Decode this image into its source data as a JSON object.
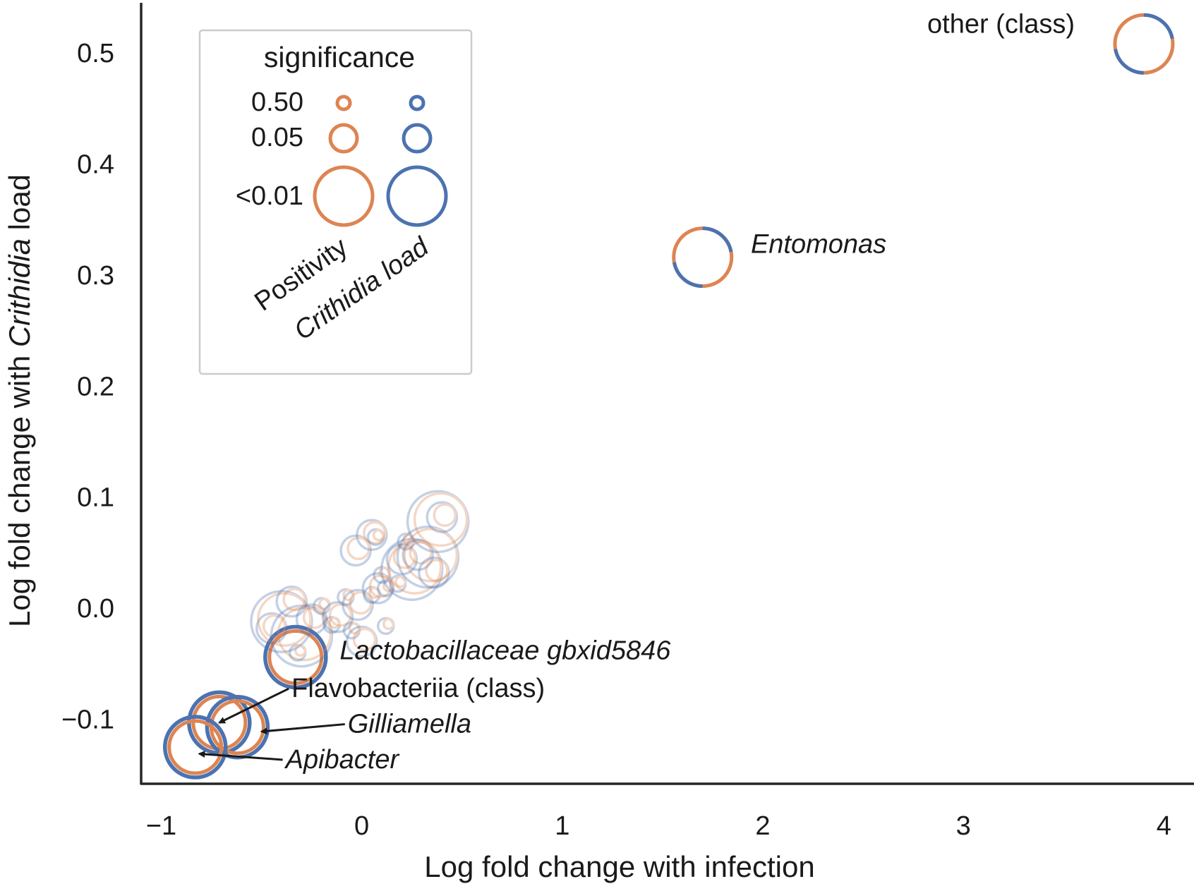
{
  "chart_data": {
    "type": "scatter",
    "title": "",
    "xlabel": "Log fold change with infection",
    "ylabel_prefix": "Log fold change with ",
    "ylabel_italic": "Crithidia",
    "ylabel_suffix": " load",
    "xlim": [
      -1.1,
      4.15
    ],
    "ylim": [
      -0.158,
      0.545
    ],
    "x_ticks": [
      -1,
      0,
      1,
      2,
      3,
      4
    ],
    "x_tick_labels": [
      "−1",
      "0",
      "1",
      "2",
      "3",
      "4"
    ],
    "y_ticks": [
      -0.1,
      0.0,
      0.1,
      0.2,
      0.3,
      0.4,
      0.5
    ],
    "y_tick_labels": [
      "−0.1",
      "0.0",
      "0.1",
      "0.2",
      "0.3",
      "0.4",
      "0.5"
    ],
    "colors": {
      "positivity": "#dd8452",
      "crithidia_load": "#4c72b0"
    },
    "legend": {
      "title": "significance",
      "levels": [
        "0.50",
        "0.05",
        "<0.01"
      ],
      "columns": [
        "Positivity",
        "Crithidia load"
      ],
      "placement": "top-left"
    },
    "points": [
      {
        "x": 3.9,
        "y": 0.508,
        "size": "<0.01",
        "label": "other (class)",
        "split": true
      },
      {
        "x": 1.7,
        "y": 0.316,
        "size": "<0.01",
        "label": "Entomonas",
        "split": true
      },
      {
        "x": -0.33,
        "y": -0.044,
        "size": "<0.01",
        "label": "Lactobacillaceae gbxid5846"
      },
      {
        "x": -0.71,
        "y": -0.103,
        "size": "<0.01",
        "label": "Flavobacteriia (class)"
      },
      {
        "x": -0.62,
        "y": -0.107,
        "size": "<0.01",
        "label": "Gilliamella"
      },
      {
        "x": -0.83,
        "y": -0.125,
        "size": "<0.01",
        "label": "Apibacter"
      },
      {
        "x": -0.45,
        "y": -0.018,
        "size": "0.05",
        "faded": true
      },
      {
        "x": -0.4,
        "y": -0.012,
        "size": "<0.01",
        "faded": true
      },
      {
        "x": -0.3,
        "y": -0.025,
        "size": "<0.01",
        "faded": true
      },
      {
        "x": -0.35,
        "y": 0.006,
        "size": "0.05",
        "faded": true
      },
      {
        "x": -0.25,
        "y": -0.01,
        "size": "0.05",
        "faded": true
      },
      {
        "x": -0.2,
        "y": 0.002,
        "size": "0.50",
        "faded": true
      },
      {
        "x": -0.15,
        "y": -0.015,
        "size": "0.50",
        "faded": true
      },
      {
        "x": -0.12,
        "y": -0.008,
        "size": "0.05",
        "faded": true
      },
      {
        "x": -0.05,
        "y": -0.02,
        "size": "0.50",
        "faded": true
      },
      {
        "x": -0.02,
        "y": 0.003,
        "size": "0.05",
        "faded": true
      },
      {
        "x": 0.0,
        "y": -0.03,
        "size": "0.05",
        "faded": true
      },
      {
        "x": -0.08,
        "y": 0.01,
        "size": "0.50",
        "faded": true
      },
      {
        "x": 0.05,
        "y": 0.012,
        "size": "0.50",
        "faded": true
      },
      {
        "x": 0.08,
        "y": 0.018,
        "size": "0.05",
        "faded": true
      },
      {
        "x": 0.12,
        "y": 0.018,
        "size": "0.50",
        "faded": true
      },
      {
        "x": 0.18,
        "y": 0.022,
        "size": "0.50",
        "faded": true
      },
      {
        "x": 0.25,
        "y": 0.035,
        "size": "<0.01",
        "faded": true
      },
      {
        "x": 0.28,
        "y": 0.048,
        "size": "0.05",
        "faded": true
      },
      {
        "x": 0.33,
        "y": 0.046,
        "size": "<0.01",
        "faded": true
      },
      {
        "x": 0.36,
        "y": 0.032,
        "size": "0.05",
        "faded": true
      },
      {
        "x": 0.38,
        "y": 0.078,
        "size": "<0.01",
        "faded": true
      },
      {
        "x": 0.4,
        "y": 0.082,
        "size": "0.05",
        "faded": true
      },
      {
        "x": 0.05,
        "y": 0.066,
        "size": "0.05",
        "faded": true
      },
      {
        "x": -0.03,
        "y": 0.052,
        "size": "0.05",
        "faded": true
      },
      {
        "x": 0.07,
        "y": 0.064,
        "size": "0.50",
        "faded": true
      },
      {
        "x": 0.2,
        "y": 0.044,
        "size": "0.05",
        "faded": true
      },
      {
        "x": 0.22,
        "y": 0.06,
        "size": "0.50",
        "faded": true
      },
      {
        "x": 0.1,
        "y": 0.03,
        "size": "0.50",
        "faded": true
      },
      {
        "x": 0.12,
        "y": -0.016,
        "size": "0.50",
        "faded": true
      },
      {
        "x": -0.32,
        "y": -0.04,
        "size": "0.50",
        "faded": true
      }
    ],
    "annotations": [
      {
        "text": "other (class)",
        "italic": false,
        "target": [
          3.9,
          0.508
        ],
        "text_at": [
          2.82,
          0.518
        ],
        "arrow": false
      },
      {
        "text": "Entomonas",
        "italic": true,
        "target": [
          1.7,
          0.316
        ],
        "text_at": [
          1.94,
          0.32
        ],
        "arrow": false
      },
      {
        "text": "Lactobacillaceae gbxid5846",
        "italic": true,
        "target": [
          -0.33,
          -0.044
        ],
        "text_at": [
          -0.11,
          -0.046
        ],
        "arrow": false
      },
      {
        "text": "Flavobacteriia (class)",
        "italic": false,
        "target": [
          -0.71,
          -0.103
        ],
        "text_at": [
          -0.35,
          -0.08
        ],
        "arrow": true
      },
      {
        "text": "Gilliamella",
        "italic": true,
        "target": [
          -0.5,
          -0.111
        ],
        "text_at": [
          -0.07,
          -0.112
        ],
        "arrow": true
      },
      {
        "text": "Apibacter",
        "italic": true,
        "target": [
          -0.81,
          -0.131
        ],
        "text_at": [
          -0.38,
          -0.144
        ],
        "arrow": true
      }
    ]
  }
}
